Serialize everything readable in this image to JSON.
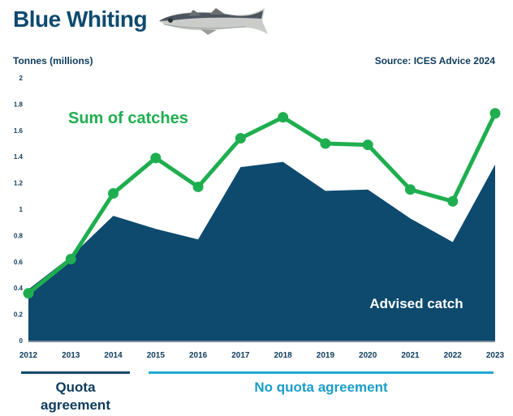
{
  "header": {
    "title": "Blue Whiting",
    "ylabel": "Tonnes (millions)",
    "source": "Source: ICES Advice 2024"
  },
  "chart_data": {
    "type": "area",
    "title": "Blue Whiting",
    "ylabel": "Tonnes (millions)",
    "xlabel": "",
    "x": [
      "2012",
      "2013",
      "2014",
      "2015",
      "2016",
      "2017",
      "2018",
      "2019",
      "2020",
      "2021",
      "2022",
      "2023"
    ],
    "ylim": [
      0,
      2
    ],
    "yticks": [
      0,
      0.2,
      0.4,
      0.6,
      0.8,
      1,
      1.2,
      1.4,
      1.6,
      1.8,
      2
    ],
    "grid": false,
    "series": [
      {
        "name": "Advised catch",
        "type": "area",
        "color": "#0d4a6e",
        "values": [
          0.39,
          0.64,
          0.95,
          0.85,
          0.77,
          1.32,
          1.36,
          1.14,
          1.15,
          0.93,
          0.75,
          1.34
        ]
      },
      {
        "name": "Sum of catches",
        "type": "line",
        "color": "#1fae4f",
        "values": [
          0.36,
          0.62,
          1.12,
          1.39,
          1.17,
          1.54,
          1.7,
          1.5,
          1.49,
          1.15,
          1.06,
          1.73
        ]
      }
    ]
  },
  "legend": {
    "quota": "Quota agreement",
    "quota_line1": "Quota",
    "quota_line2": "agreement",
    "no_quota": "No quota agreement"
  }
}
